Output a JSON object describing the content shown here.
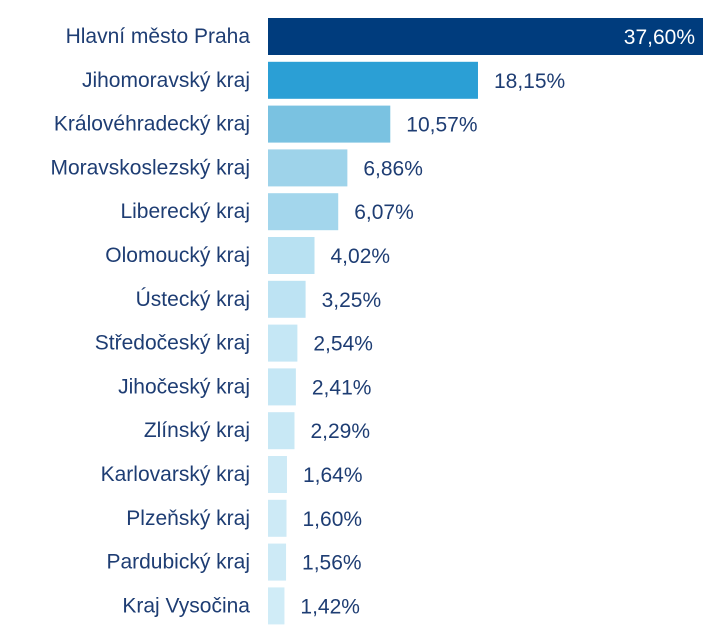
{
  "chart_data": {
    "type": "bar",
    "orientation": "horizontal",
    "categories": [
      "Hlavní město Praha",
      "Jihomoravský kraj",
      "Královéhradecký kraj",
      "Moravskoslezský kraj",
      "Liberecký kraj",
      "Olomoucký kraj",
      "Ústecký kraj",
      "Středočeský kraj",
      "Jihočeský kraj",
      "Zlínský kraj",
      "Karlovarský kraj",
      "Plzeňský kraj",
      "Pardubický kraj",
      "Kraj Vysočina"
    ],
    "values": [
      37.6,
      18.15,
      10.57,
      6.86,
      6.07,
      4.02,
      3.25,
      2.54,
      2.41,
      2.29,
      1.64,
      1.6,
      1.56,
      1.42
    ],
    "value_labels": [
      "37,60%",
      "18,15%",
      "10,57%",
      "6,86%",
      "6,07%",
      "4,02%",
      "3,25%",
      "2,54%",
      "2,41%",
      "2,29%",
      "1,64%",
      "1,60%",
      "1,56%",
      "1,42%"
    ],
    "colors": [
      "#003c7d",
      "#2b9fd5",
      "#7ac2e1",
      "#9ed3ea",
      "#a3d6ec",
      "#b8e1f2",
      "#bde3f3",
      "#c5e7f5",
      "#c5e7f5",
      "#c8e8f5",
      "#cdeaf6",
      "#cdeaf6",
      "#cdeaf6",
      "#d0ecf7"
    ]
  }
}
